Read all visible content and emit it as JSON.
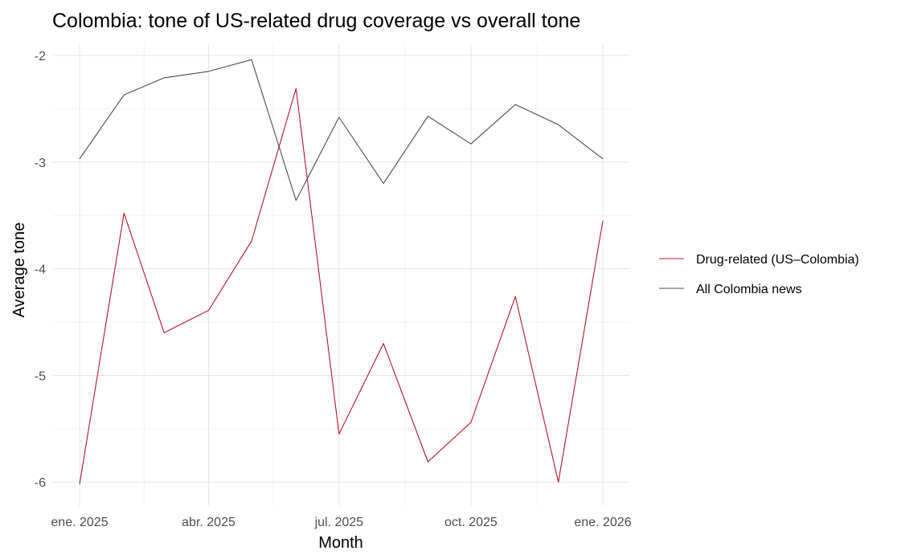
{
  "chart_data": {
    "type": "line",
    "title": "Colombia: tone of US-related drug coverage vs overall tone",
    "xlabel": "Month",
    "ylabel": "Average tone",
    "x": [
      "2025-01",
      "2025-02",
      "2025-03",
      "2025-04",
      "2025-05",
      "2025-06",
      "2025-07",
      "2025-08",
      "2025-09",
      "2025-10",
      "2025-11",
      "2025-12",
      "2026-01"
    ],
    "x_ticks": [
      {
        "date": "2025-01",
        "label": "ene. 2025"
      },
      {
        "date": "2025-04",
        "label": "abr. 2025"
      },
      {
        "date": "2025-07",
        "label": "jul. 2025"
      },
      {
        "date": "2025-10",
        "label": "oct. 2025"
      },
      {
        "date": "2026-01",
        "label": "ene. 2026"
      }
    ],
    "x_minor_ticks": [
      "2025-02-15",
      "2025-05-16",
      "2025-08-16",
      "2025-11-16"
    ],
    "y_ticks": [
      -2,
      -3,
      -4,
      -5,
      -6
    ],
    "ylim": [
      -6.25,
      -1.85
    ],
    "grid": true,
    "legend_position": "right",
    "series": [
      {
        "name": "Drug-related (US–Colombia)",
        "color": "#b2182b",
        "values": [
          -6.02,
          -3.48,
          -4.6,
          -4.39,
          -3.74,
          -2.31,
          -5.55,
          -4.7,
          -5.81,
          -5.44,
          -4.26,
          -6.0,
          -3.55
        ]
      },
      {
        "name": "All Colombia news",
        "color": "#4d4d4d",
        "values": [
          -2.97,
          -2.37,
          -2.21,
          -2.15,
          -2.04,
          -3.36,
          -2.58,
          -3.2,
          -2.57,
          -2.83,
          -2.46,
          -2.65,
          -2.97
        ]
      }
    ]
  }
}
